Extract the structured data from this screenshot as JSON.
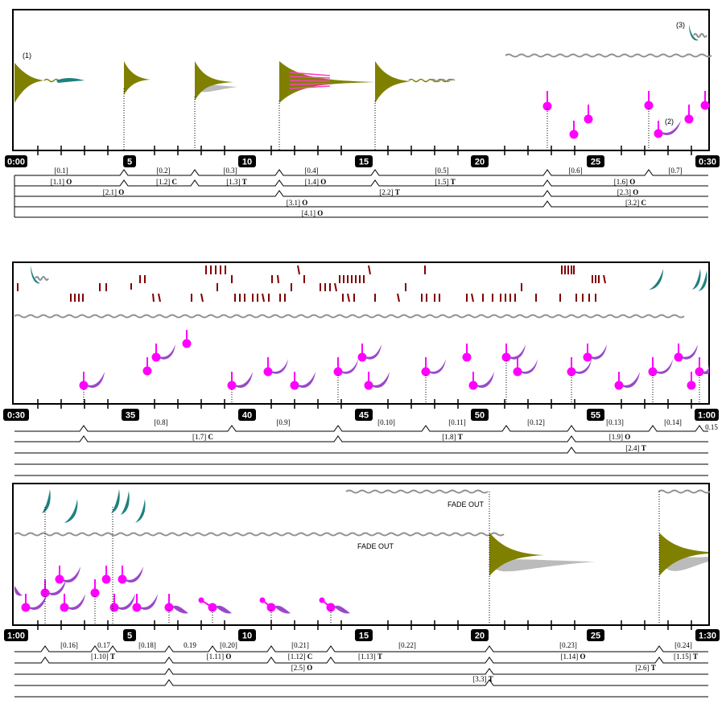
{
  "rows": [
    {
      "ticks": [
        "0:00",
        "5",
        "10",
        "15",
        "20",
        "25",
        "0:30"
      ],
      "annotations": [
        "(1)",
        "(2)",
        "(3)"
      ],
      "sections": [
        [
          {
            "t": "[0.1]"
          },
          {
            "t": "[0.2]"
          },
          {
            "t": "[0.3]"
          },
          {
            "t": "[0.4]"
          },
          {
            "t": "[0.5]"
          },
          {
            "t": "[0.6]"
          },
          {
            "t": "[0.7]"
          }
        ],
        [
          {
            "t": "[1.1]",
            "m": "O"
          },
          {
            "t": "[1.2]",
            "m": "C"
          },
          {
            "t": "[1.3]",
            "m": "T"
          },
          {
            "t": "[1.4]",
            "m": "O"
          },
          {
            "t": "[1.5]",
            "m": "T"
          },
          {
            "t": "[1.6]",
            "m": "O"
          }
        ],
        [
          {
            "t": "[2.1]",
            "m": "O"
          },
          {
            "t": "[2.2]",
            "m": "T"
          },
          {
            "t": "[2.3]",
            "m": "O"
          }
        ],
        [
          {
            "t": "[3.1]",
            "m": "O"
          },
          {
            "t": "[3.2]",
            "m": "C"
          }
        ],
        [
          {
            "t": "[4.1]",
            "m": "O"
          }
        ]
      ]
    },
    {
      "ticks": [
        "0:30",
        "35",
        "40",
        "45",
        "50",
        "55",
        "1:00"
      ],
      "annotations": [],
      "sections": [
        [
          {
            "t": "[0.8]"
          },
          {
            "t": "[0.9]"
          },
          {
            "t": "[0.10]"
          },
          {
            "t": "[0.11]"
          },
          {
            "t": "[0.12]"
          },
          {
            "t": "[0.13]"
          },
          {
            "t": "[0.14]"
          },
          {
            "t": "0.15"
          }
        ],
        [
          {
            "t": "[1.7]",
            "m": "C"
          },
          {
            "t": "[1.8]",
            "m": "T"
          },
          {
            "t": "[1.9]",
            "m": "O"
          }
        ],
        [
          {
            "t": "[2.4]",
            "m": "T"
          }
        ]
      ]
    },
    {
      "ticks": [
        "1:00",
        "5",
        "10",
        "15",
        "20",
        "25",
        "1:30"
      ],
      "annotations": [
        "FADE OUT",
        "FADE OUT"
      ],
      "sections": [
        [
          {
            "t": "[0.16]"
          },
          {
            "t": "0.17"
          },
          {
            "t": "[0.18]"
          },
          {
            "t": "0.19"
          },
          {
            "t": "[0.20]"
          },
          {
            "t": "[0.21]"
          },
          {
            "t": "[0.22]"
          },
          {
            "t": "[0.23]"
          },
          {
            "t": "[0.24]"
          }
        ],
        [
          {
            "t": "[1.10]",
            "m": "T"
          },
          {
            "t": "[1.11]",
            "m": "O"
          },
          {
            "t": "[1.12]",
            "m": "C"
          },
          {
            "t": "[1.13]",
            "m": "T"
          },
          {
            "t": "[1.14]",
            "m": "O"
          },
          {
            "t": "[1.15]",
            "m": "T"
          }
        ],
        [
          {
            "t": "[2.5]",
            "m": "O"
          },
          {
            "t": "[2.6]",
            "m": "T"
          }
        ],
        [
          {
            "t": "[3.3]",
            "m": "T"
          }
        ]
      ]
    }
  ],
  "colors": {
    "olive": "#808000",
    "teal": "#1f8080",
    "magenta": "#ff00ff",
    "violet": "#9a48c8",
    "darkred": "#800000",
    "gray": "#909090",
    "lightgray": "#bbbbbb",
    "pink": "#ff40c0"
  }
}
